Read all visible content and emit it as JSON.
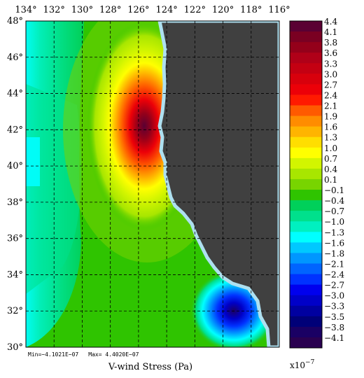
{
  "chart_data": {
    "type": "heatmap",
    "xlabel": "V-wind Stress (Pa)",
    "lon_ticks": [
      "134°",
      "132°",
      "130°",
      "128°",
      "126°",
      "124°",
      "122°",
      "120°",
      "118°",
      "116°"
    ],
    "lat_ticks": [
      "48°",
      "46°",
      "44°",
      "42°",
      "40°",
      "38°",
      "36°",
      "34°",
      "32°",
      "30°"
    ],
    "lon_range": [
      134,
      116
    ],
    "lat_range": [
      30,
      48
    ],
    "grid": true,
    "colorbar": {
      "labels": [
        "4.4",
        "4.1",
        "3.8",
        "3.6",
        "3.3",
        "3.0",
        "2.7",
        "2.4",
        "2.1",
        "1.9",
        "1.6",
        "1.3",
        "1.0",
        "0.7",
        "0.4",
        "0.1",
        "−0.1",
        "−0.4",
        "−0.7",
        "−1.0",
        "−1.3",
        "−1.6",
        "−1.8",
        "−2.1",
        "−2.4",
        "−2.7",
        "−3.0",
        "−3.3",
        "−3.5",
        "−3.8",
        "−4.1"
      ],
      "colors": [
        "#5a0033",
        "#7a0022",
        "#94001a",
        "#b00018",
        "#c40012",
        "#d8000c",
        "#ec0008",
        "#ff1a00",
        "#ff5a00",
        "#ff8c00",
        "#ffb400",
        "#ffde00",
        "#ffff00",
        "#d2f500",
        "#a8e600",
        "#78d400",
        "#2fc400",
        "#00d05a",
        "#00e08c",
        "#00f0c0",
        "#00ffff",
        "#00c8ff",
        "#0096ff",
        "#0064ff",
        "#0032ff",
        "#0000ee",
        "#0000c8",
        "#0000a0",
        "#000078",
        "#1a0064",
        "#2a0050"
      ],
      "scale": "x10",
      "scale_exp": "−7"
    },
    "min_label": "Min=−4.1021E−07",
    "max_label": "Max= 4.4020E−07",
    "features": [
      {
        "name": "positive maximum",
        "lon": 125.7,
        "lat": 42.5,
        "value": 4.4
      },
      {
        "name": "negative minimum",
        "lon": 118.8,
        "lat": 32.2,
        "value": -4.1
      }
    ],
    "land_color": "#404040",
    "coast_color": "#aee0f0",
    "background_field_color": "#2fc400"
  }
}
